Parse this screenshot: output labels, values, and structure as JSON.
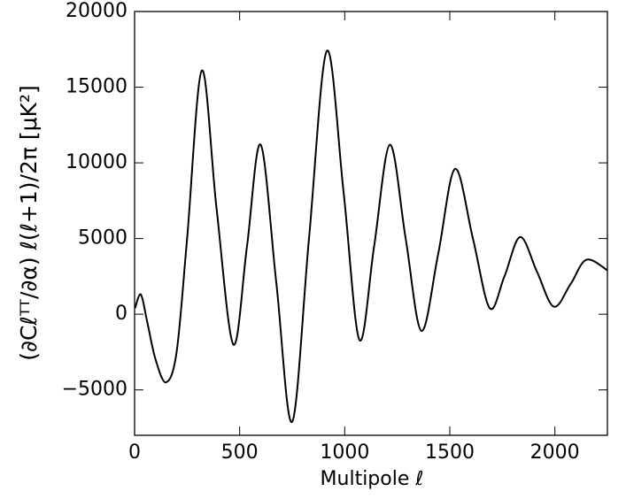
{
  "chart_data": {
    "type": "line",
    "x_label": "Multipole ℓ",
    "y_label": "(∂Cℓᵀᵀ/∂α) ℓ(ℓ+1)/2π [μK²]",
    "x": [
      2,
      30,
      60,
      100,
      150,
      200,
      250,
      320,
      390,
      470,
      535,
      600,
      675,
      750,
      830,
      915,
      995,
      1070,
      1140,
      1215,
      1290,
      1365,
      1445,
      1525,
      1610,
      1690,
      1760,
      1835,
      1915,
      1995,
      2075,
      2150,
      2250
    ],
    "series": [
      {
        "color": "#000000",
        "values": [
          400,
          1300,
          -500,
          -3000,
          -4500,
          -2500,
          5000,
          16100,
          7000,
          -2000,
          4500,
          11200,
          2000,
          -7100,
          5000,
          17400,
          8000,
          -1700,
          4500,
          11200,
          5000,
          -1100,
          4000,
          9600,
          5000,
          400,
          2500,
          5100,
          2800,
          500,
          2000,
          3600,
          2900
        ]
      }
    ],
    "xlim": [
      0,
      2250
    ],
    "ylim": [
      -8000,
      20000
    ],
    "xticks": [
      0,
      500,
      1000,
      1500,
      2000
    ],
    "yticks": [
      {
        "value": -5000,
        "label": "−5000"
      },
      0,
      5000,
      10000,
      15000,
      20000
    ]
  }
}
